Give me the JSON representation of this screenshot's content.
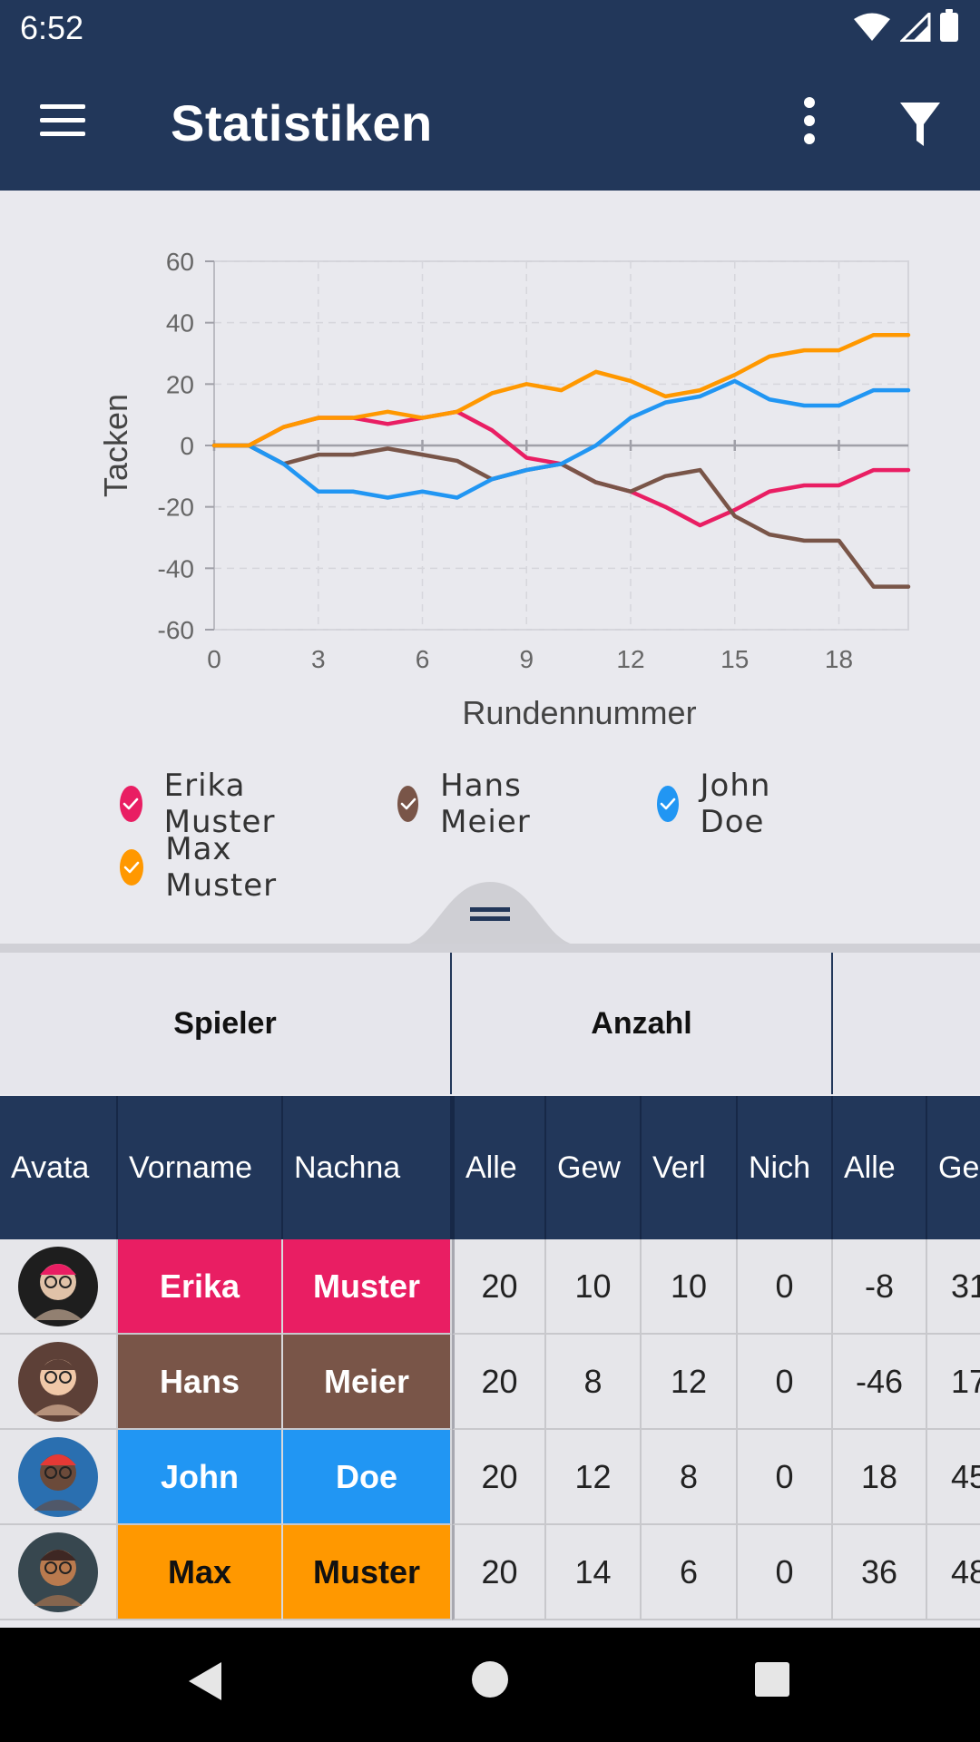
{
  "status_bar": {
    "time": "6:52"
  },
  "app_bar": {
    "title": "Statistiken",
    "menu_icon": "hamburger-menu-icon",
    "more_icon": "more-vert-icon",
    "filter_icon": "filter-icon"
  },
  "chart_data": {
    "type": "line",
    "xlabel": "Rundennummer",
    "ylabel": "Tacken",
    "xlim": [
      0,
      20
    ],
    "ylim": [
      -60,
      60
    ],
    "x_ticks": [
      0,
      3,
      6,
      9,
      12,
      15,
      18
    ],
    "y_ticks": [
      60,
      40,
      20,
      0,
      -20,
      -40,
      -60
    ],
    "grid": true,
    "x": [
      0,
      1,
      2,
      3,
      4,
      5,
      6,
      7,
      8,
      9,
      10,
      11,
      12,
      13,
      14,
      15,
      16,
      17,
      18,
      19,
      20
    ],
    "series": [
      {
        "name": "Erika Muster",
        "color": "#e91e63",
        "values": [
          0,
          0,
          6,
          9,
          9,
          7,
          9,
          11,
          5,
          -4,
          -6,
          -12,
          -15,
          -20,
          -26,
          -21,
          -15,
          -13,
          -13,
          -8,
          -8
        ]
      },
      {
        "name": "Hans Meier",
        "color": "#795548",
        "values": [
          0,
          0,
          -6,
          -3,
          -3,
          -1,
          -3,
          -5,
          -11,
          -8,
          -6,
          -12,
          -15,
          -10,
          -8,
          -23,
          -29,
          -31,
          -31,
          -46,
          -46
        ]
      },
      {
        "name": "John Doe",
        "color": "#2196f3",
        "values": [
          0,
          0,
          -6,
          -15,
          -15,
          -17,
          -15,
          -17,
          -11,
          -8,
          -6,
          0,
          9,
          14,
          16,
          21,
          15,
          13,
          13,
          18,
          18
        ]
      },
      {
        "name": "Max Muster",
        "color": "#ff9800",
        "values": [
          0,
          0,
          6,
          9,
          9,
          11,
          9,
          11,
          17,
          20,
          18,
          24,
          21,
          16,
          18,
          23,
          29,
          31,
          31,
          36,
          36
        ]
      }
    ]
  },
  "legend": [
    {
      "label": "Erika Muster",
      "color": "#e91e63"
    },
    {
      "label": "Hans Meier",
      "color": "#795548"
    },
    {
      "label": "John Doe",
      "color": "#2196f3"
    },
    {
      "label": "Max Muster",
      "color": "#ff9800"
    }
  ],
  "group_header": {
    "spieler": "Spieler",
    "anzahl": "Anzahl"
  },
  "table": {
    "columns": [
      "Avata",
      "Vorname",
      "Nachna",
      "Alle",
      "Gew",
      "Verl",
      "Nich",
      "Alle",
      "Ge"
    ],
    "rows": [
      {
        "first": "Erika",
        "last": "Muster",
        "color": "#e91e63",
        "text_color": "#ffffff",
        "alle": "20",
        "gew": "10",
        "verl": "10",
        "nich": "0",
        "tacken_alle": "-8",
        "partial": "31"
      },
      {
        "first": "Hans",
        "last": "Meier",
        "color": "#795548",
        "text_color": "#ffffff",
        "alle": "20",
        "gew": "8",
        "verl": "12",
        "nich": "0",
        "tacken_alle": "-46",
        "partial": "17"
      },
      {
        "first": "John",
        "last": "Doe",
        "color": "#2196f3",
        "text_color": "#ffffff",
        "alle": "20",
        "gew": "12",
        "verl": "8",
        "nich": "0",
        "tacken_alle": "18",
        "partial": "45"
      },
      {
        "first": "Max",
        "last": "Muster",
        "color": "#ff9800",
        "text_color": "#111111",
        "alle": "20",
        "gew": "14",
        "verl": "6",
        "nich": "0",
        "tacken_alle": "36",
        "partial": "48"
      }
    ]
  },
  "nav_bar": {
    "back_icon": "back-triangle-icon",
    "home_icon": "home-circle-icon",
    "recents_icon": "recents-square-icon"
  }
}
